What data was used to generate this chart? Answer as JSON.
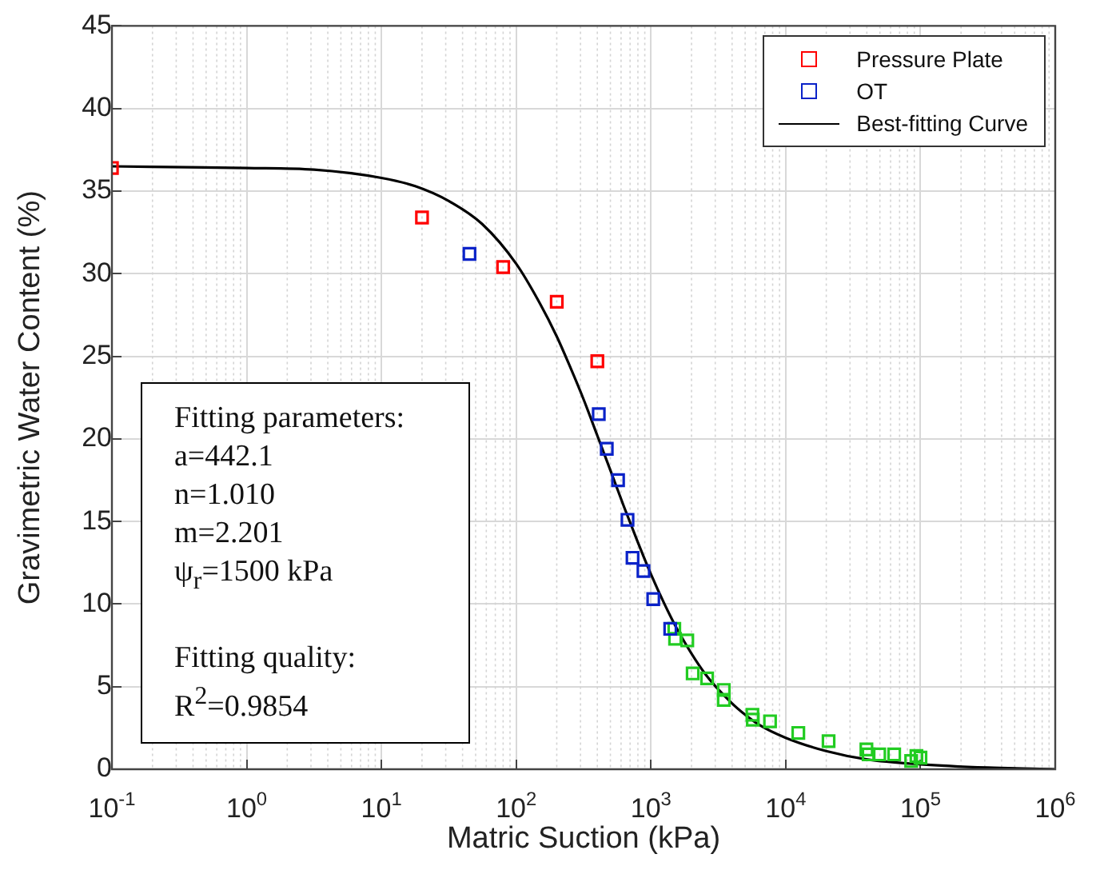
{
  "chart_data": {
    "type": "scatter",
    "xlabel": "Matric Suction (kPa)",
    "ylabel": "Gravimetric Water Content (%)",
    "log": "x",
    "grid": true,
    "legend": "top right",
    "marker": "square",
    "xlim": [
      0.1,
      1000000
    ],
    "xticks": [
      {
        "value": 0.1,
        "label": "10$^{-1}$"
      },
      {
        "value": 1,
        "label": "10$^{0}$"
      },
      {
        "value": 10,
        "label": "10$^{1}$"
      },
      {
        "value": 100,
        "label": "10$^{2}$"
      },
      {
        "value": 1000,
        "label": "10$^{3}$"
      },
      {
        "value": 10000,
        "label": "10$^{4}$"
      },
      {
        "value": 100000,
        "label": "10$^{5}$"
      },
      {
        "value": 1000000,
        "label": "10$^{6}$"
      }
    ],
    "ylim": [
      0,
      45
    ],
    "yticks": [
      0,
      5,
      10,
      15,
      20,
      25,
      30,
      35,
      40,
      45
    ],
    "series": [
      {
        "name": "Pressure Plate",
        "color": "#ff0000",
        "x": [
          0.1,
          20,
          80,
          200,
          400
        ],
        "values": [
          36.4,
          33.4,
          30.4,
          28.3,
          24.7
        ]
      },
      {
        "name": "OT",
        "color": "#0a22c8",
        "x": [
          45,
          410,
          470,
          570,
          670,
          730,
          880,
          1040,
          1390
        ],
        "values": [
          31.2,
          21.5,
          19.4,
          17.5,
          15.1,
          12.8,
          12.0,
          10.3,
          8.5
        ]
      },
      {
        "color": "#22cc22",
        "x": [
          1490,
          1510,
          1860,
          2040,
          2610,
          3470,
          3470,
          5660,
          5700,
          7650,
          12400,
          20800,
          39700,
          41200,
          49400,
          63800,
          85300,
          93300,
          100000
        ],
        "values": [
          8.5,
          7.9,
          7.8,
          5.8,
          5.5,
          4.8,
          4.2,
          3.3,
          3.0,
          2.9,
          2.2,
          1.7,
          1.2,
          0.9,
          0.9,
          0.9,
          0.5,
          0.8,
          0.7
        ]
      },
      {
        "name": "Best-fitting Curve",
        "type": "line",
        "color": "#000000",
        "line_style": "solid",
        "marker": "none",
        "x": [
          0.1,
          1,
          3.16,
          10,
          17.8,
          31.6,
          56,
          100,
          150,
          200,
          250,
          316,
          400,
          500,
          630,
          794,
          1000,
          1260,
          1585,
          2512,
          3981,
          5000,
          6310,
          10000,
          19953,
          39811,
          100000,
          316228,
          1000000
        ],
        "values": [
          36.5,
          36.4,
          36.3,
          35.8,
          35.3,
          34.4,
          33.0,
          30.6,
          28.2,
          26.2,
          24.4,
          22.4,
          20.2,
          18.1,
          15.9,
          13.8,
          11.8,
          10.0,
          8.4,
          5.8,
          4.0,
          3.3,
          2.7,
          1.9,
          1.1,
          0.6,
          0.3,
          0.1,
          0
        ]
      }
    ],
    "annotations": [
      "Fitting parameters:\na=442.1\nn=1.010\nm=2.201\nψ$_{r}$=1500 kPa",
      "Fitting quality:\nR$^{2}$=0.9854"
    ]
  }
}
